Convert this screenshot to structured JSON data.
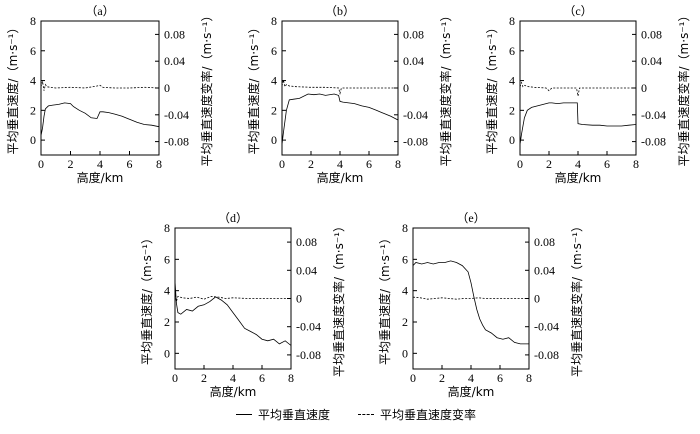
{
  "chart_data": [
    {
      "type": "line",
      "title": "（a）",
      "xlabel": "高度/km",
      "ylabel": "平均垂直速度/（m·s⁻¹）",
      "y2label": "平均垂直速度变率/（m·s⁻¹）",
      "xlim": [
        0,
        8
      ],
      "ylim": [
        -1,
        8
      ],
      "y2lim": [
        -0.1,
        0.1
      ],
      "xticks": [
        "0",
        "2",
        "4",
        "6",
        "8"
      ],
      "yticks": [
        "0",
        "2",
        "4",
        "6",
        "8"
      ],
      "y2ticks": [
        "-0.08",
        "-0.04",
        "0",
        "0.04",
        "0.08"
      ],
      "series": [
        {
          "name": "平均垂直速度",
          "axis": "left",
          "style": "solid",
          "x": [
            0,
            0.1,
            0.2,
            0.3,
            0.5,
            0.8,
            1.2,
            1.6,
            2.0,
            2.2,
            2.6,
            3.0,
            3.4,
            3.8,
            4.0,
            4.2,
            4.6,
            5.0,
            5.5,
            6.0,
            6.5,
            7.0,
            7.5,
            8.0
          ],
          "y": [
            0.3,
            0.8,
            1.6,
            2.1,
            2.3,
            2.35,
            2.4,
            2.5,
            2.45,
            2.25,
            2.0,
            1.8,
            1.5,
            1.45,
            1.9,
            1.9,
            1.85,
            1.75,
            1.6,
            1.4,
            1.2,
            1.05,
            1.0,
            0.9
          ]
        },
        {
          "name": "平均垂直速度变率",
          "axis": "right",
          "style": "dashed",
          "x": [
            0,
            0.1,
            0.2,
            0.3,
            0.4,
            0.6,
            1.0,
            2.0,
            3.0,
            3.8,
            4.0,
            4.2,
            5.0,
            6.0,
            7.0,
            8.0
          ],
          "y": [
            0.002,
            0.01,
            -0.004,
            0.005,
            0.002,
            0.001,
            0.0,
            0.001,
            0.0,
            0.003,
            0.004,
            0.001,
            0.0,
            0.0,
            0.001,
            0.0
          ]
        }
      ]
    },
    {
      "type": "line",
      "title": "（b）",
      "xlabel": "高度/km",
      "ylabel": "平均垂直速度/（m·s⁻¹）",
      "y2label": "平均垂直速度变率/（m·s⁻¹）",
      "xlim": [
        0,
        8
      ],
      "ylim": [
        -1,
        8
      ],
      "y2lim": [
        -0.1,
        0.1
      ],
      "xticks": [
        "0",
        "2",
        "4",
        "6",
        "8"
      ],
      "yticks": [
        "0",
        "2",
        "4",
        "6",
        "8"
      ],
      "y2ticks": [
        "-0.08",
        "-0.04",
        "0",
        "0.04",
        "0.08"
      ],
      "series": [
        {
          "name": "平均垂直速度",
          "axis": "left",
          "style": "solid",
          "x": [
            0,
            0.1,
            0.3,
            0.5,
            0.8,
            1.2,
            1.8,
            2.2,
            2.6,
            3.0,
            3.6,
            3.9,
            4.0,
            4.2,
            4.6,
            5.0,
            5.5,
            6.0,
            6.5,
            7.0,
            7.5,
            8.0
          ],
          "y": [
            -0.3,
            0.5,
            2.0,
            2.7,
            2.75,
            2.8,
            3.1,
            3.05,
            3.1,
            3.0,
            3.1,
            3.0,
            2.6,
            2.55,
            2.5,
            2.45,
            2.3,
            2.2,
            2.0,
            1.8,
            1.6,
            1.35
          ]
        },
        {
          "name": "平均垂直速度变率",
          "axis": "right",
          "style": "dashed",
          "x": [
            0,
            0.1,
            0.2,
            0.3,
            0.5,
            1.0,
            2.0,
            3.0,
            3.9,
            4.0,
            4.1,
            5.0,
            6.0,
            7.0,
            8.0
          ],
          "y": [
            0.003,
            0.012,
            0.002,
            0.005,
            0.003,
            0.002,
            0.001,
            0.001,
            0.0,
            -0.008,
            0.0,
            0.0,
            0.0,
            0.0,
            0.0
          ]
        }
      ]
    },
    {
      "type": "line",
      "title": "（c）",
      "xlabel": "高度/km",
      "ylabel": "平均垂直速度/（m·s⁻¹）",
      "y2label": "平均垂直速度变率/（m·s⁻¹）",
      "xlim": [
        0,
        8
      ],
      "ylim": [
        -1,
        8
      ],
      "y2lim": [
        -0.1,
        0.1
      ],
      "xticks": [
        "0",
        "2",
        "4",
        "6",
        "8"
      ],
      "yticks": [
        "0",
        "2",
        "4",
        "6",
        "8"
      ],
      "y2ticks": [
        "-0.08",
        "-0.04",
        "0",
        "0.04",
        "0.08"
      ],
      "series": [
        {
          "name": "平均垂直速度",
          "axis": "left",
          "style": "solid",
          "x": [
            0,
            0.1,
            0.3,
            0.5,
            0.8,
            1.2,
            1.6,
            2.0,
            2.2,
            2.6,
            3.0,
            3.6,
            3.95,
            4.0,
            4.3,
            5.0,
            5.5,
            6.0,
            6.5,
            7.0,
            7.5,
            8.0
          ],
          "y": [
            -0.3,
            0.4,
            1.5,
            2.0,
            2.2,
            2.3,
            2.4,
            2.5,
            2.5,
            2.45,
            2.5,
            2.5,
            2.5,
            1.1,
            1.05,
            1.0,
            1.0,
            0.95,
            0.95,
            0.95,
            1.0,
            1.05
          ]
        },
        {
          "name": "平均垂直速度变率",
          "axis": "right",
          "style": "dashed",
          "x": [
            0,
            0.1,
            0.2,
            0.3,
            0.6,
            1.0,
            1.8,
            2.0,
            2.2,
            3.0,
            3.9,
            4.0,
            4.1,
            5.0,
            6.0,
            7.0,
            8.0
          ],
          "y": [
            0.002,
            0.008,
            0.002,
            0.004,
            0.002,
            0.001,
            0.0,
            -0.004,
            0.0,
            0.0,
            0.0,
            -0.012,
            0.0,
            0.0,
            0.0,
            0.0,
            0.0
          ]
        }
      ]
    },
    {
      "type": "line",
      "title": "（d）",
      "xlabel": "高度/km",
      "ylabel": "平均垂直速度/（m·s⁻¹）",
      "y2label": "平均垂直速度变率/（m·s⁻¹）",
      "xlim": [
        0,
        8
      ],
      "ylim": [
        -1,
        8
      ],
      "y2lim": [
        -0.1,
        0.1
      ],
      "xticks": [
        "0",
        "2",
        "4",
        "6",
        "8"
      ],
      "yticks": [
        "0",
        "2",
        "4",
        "6",
        "8"
      ],
      "y2ticks": [
        "-0.08",
        "-0.04",
        "0",
        "0.04",
        "0.08"
      ],
      "series": [
        {
          "name": "平均垂直速度",
          "axis": "left",
          "style": "solid",
          "x": [
            0,
            0.1,
            0.2,
            0.4,
            0.8,
            1.2,
            1.6,
            2.0,
            2.4,
            2.8,
            3.2,
            3.6,
            4.0,
            4.4,
            4.8,
            5.2,
            5.6,
            6.0,
            6.4,
            6.8,
            7.2,
            7.6,
            8.0
          ],
          "y": [
            4.6,
            3.2,
            2.6,
            2.5,
            2.8,
            2.7,
            3.0,
            3.1,
            3.3,
            3.6,
            3.4,
            3.1,
            2.6,
            2.1,
            1.6,
            1.4,
            1.2,
            0.9,
            0.8,
            0.9,
            0.6,
            0.8,
            0.5
          ]
        },
        {
          "name": "平均垂直速度变率",
          "axis": "right",
          "style": "dashed",
          "x": [
            0,
            0.1,
            0.2,
            0.5,
            1.0,
            1.5,
            2.0,
            2.5,
            3.0,
            3.5,
            4.0,
            5.0,
            6.0,
            7.0,
            8.0
          ],
          "y": [
            0.01,
            -0.004,
            0.003,
            0.001,
            0.0,
            0.002,
            -0.001,
            0.003,
            0.002,
            0.0,
            0.001,
            0.0,
            0.0,
            0.0,
            0.0
          ]
        }
      ]
    },
    {
      "type": "line",
      "title": "（e）",
      "xlabel": "高度/km",
      "ylabel": "平均垂直速度/（m·s⁻¹）",
      "y2label": "平均垂直速度变率/（m·s⁻¹）",
      "xlim": [
        0,
        8
      ],
      "ylim": [
        -1,
        8
      ],
      "y2lim": [
        -0.1,
        0.1
      ],
      "xticks": [
        "0",
        "2",
        "4",
        "6",
        "8"
      ],
      "yticks": [
        "0",
        "2",
        "4",
        "6",
        "8"
      ],
      "y2ticks": [
        "-0.08",
        "-0.04",
        "0",
        "0.04",
        "0.08"
      ],
      "series": [
        {
          "name": "平均垂直速度",
          "axis": "left",
          "style": "solid",
          "x": [
            0,
            0.2,
            0.6,
            1.0,
            1.4,
            1.8,
            2.2,
            2.6,
            3.0,
            3.4,
            3.8,
            4.0,
            4.2,
            4.4,
            4.6,
            4.8,
            5.0,
            5.4,
            5.8,
            6.2,
            6.6,
            7.0,
            7.4,
            7.8,
            8.0
          ],
          "y": [
            5.6,
            5.8,
            5.7,
            5.8,
            5.7,
            5.8,
            5.8,
            5.9,
            5.8,
            5.6,
            5.2,
            4.5,
            3.6,
            2.8,
            2.2,
            1.8,
            1.5,
            1.3,
            1.0,
            0.9,
            1.0,
            0.7,
            0.6,
            0.6,
            0.6
          ]
        },
        {
          "name": "平均垂直速度变率",
          "axis": "right",
          "style": "dashed",
          "x": [
            0,
            0.5,
            1.0,
            1.5,
            2.0,
            2.5,
            3.0,
            3.5,
            4.0,
            4.5,
            5.0,
            6.0,
            7.0,
            8.0
          ],
          "y": [
            0.002,
            0.001,
            -0.001,
            0.0,
            0.001,
            0.0,
            -0.001,
            0.0,
            0.0,
            0.001,
            0.0,
            0.0,
            0.0,
            0.0
          ]
        }
      ]
    }
  ],
  "legend": {
    "solid_label": "平均垂直速度",
    "dashed_label": "平均垂直速度变率"
  }
}
